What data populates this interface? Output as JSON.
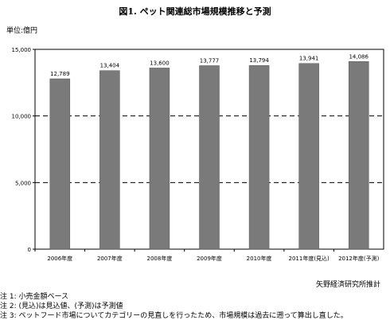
{
  "title": "図1. ペット関連総市場規模推移と予測",
  "unit_label": "単位:億円",
  "credit": "矢野経済研究所推計",
  "notes": [
    "注 1:  小売金額ベース",
    "注 2:  (見込)は見込値、(予測)は予測値",
    "注 3:  ペットフード市場についてカテゴリーの見直しを行ったため、市場規模は過去に遡って算出し直した。"
  ],
  "chart_data": {
    "type": "bar",
    "categories": [
      "2006年度",
      "2007年度",
      "2008年度",
      "2009年度",
      "2010年度",
      "2011年度(見込)",
      "2012年度(予測)"
    ],
    "values": [
      12789,
      13404,
      13600,
      13777,
      13794,
      13941,
      14086
    ],
    "value_labels": [
      "12,789",
      "13,404",
      "13,600",
      "13,777",
      "13,794",
      "13,941",
      "14,086"
    ],
    "ylim": [
      0,
      15000
    ],
    "yticks": [
      0,
      5000,
      10000,
      15000
    ],
    "ytick_labels": [
      "0",
      "5,000",
      "10,000",
      "15,000"
    ],
    "gridlines": "dashed",
    "bar_color": "#7a7a7a"
  }
}
